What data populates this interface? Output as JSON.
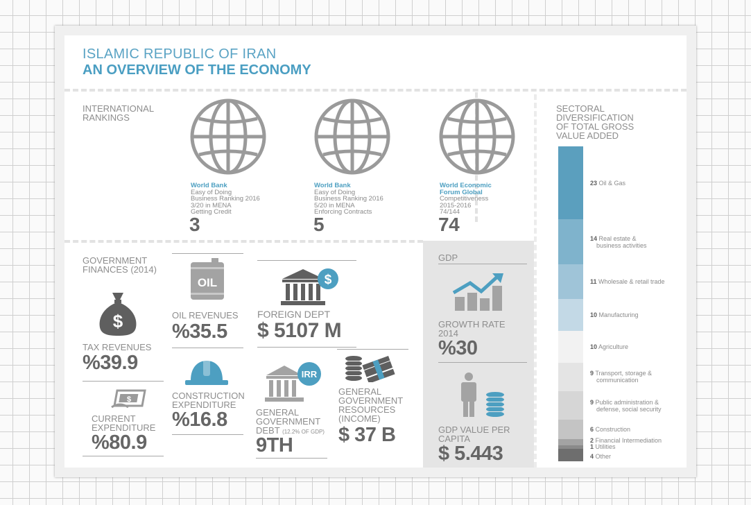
{
  "header": {
    "title_line1": "ISLAMIC REPUBLIC OF IRAN",
    "title_line2": "AN OVERVIEW OF THE ECONOMY"
  },
  "rankings": {
    "heading_line1": "INTERNATIONAL",
    "heading_line2": "RANKINGS",
    "items": [
      {
        "source": "World Bank",
        "line1": "Easy of Doing",
        "line2": "Business Ranking 2016",
        "line3": "3/20 in MENA",
        "line4": "Getting Credit",
        "value": "3"
      },
      {
        "source": "World Bank",
        "line1": "Easy of Doing",
        "line2": "Business Ranking 2016",
        "line3": "5/20 in MENA",
        "line4": "Enforcing Contracts",
        "value": "5"
      },
      {
        "source_line1": "World Economic",
        "source_line2": "Forum Global",
        "line1": "Competitiveness",
        "line2": "2015-2016",
        "line3": "74/144",
        "value": "74"
      }
    ]
  },
  "finances": {
    "heading_line1": "GOVERNMENT",
    "heading_line2": "FINANCES (2014)",
    "tax_revenues": {
      "label": "TAX REVENUES",
      "value": "%39.9",
      "icon": "money-bag-icon",
      "icon_symbol": "$"
    },
    "current_expenditure": {
      "label_line1": "CURRENT",
      "label_line2": "EXPENDITURE",
      "value": "%80.9",
      "icon": "cash-hand-icon",
      "icon_symbol": "$"
    },
    "oil_revenues": {
      "label": "OIL REVENUES",
      "value": "%35.5",
      "icon": "oil-barrel-icon",
      "icon_text": "OIL"
    },
    "construction_expenditure": {
      "label_line1": "CONSTRUCTION",
      "label_line2": "EXPENDITURE",
      "value": "%16.8",
      "icon": "hard-hat-icon"
    },
    "foreign_debt": {
      "label": "FOREIGN DEPT",
      "value": "$ 5107 M",
      "icon": "bank-dollar-icon",
      "icon_symbol": "$"
    },
    "government_debt": {
      "label_line1": "GENERAL",
      "label_line2": "GOVERNMENT",
      "label_line3": "DEBT",
      "label_note": "(12.2% OF GDP)",
      "value": "9TH",
      "icon": "bank-irr-icon",
      "icon_text": "IRR"
    },
    "government_resources": {
      "label_line1": "GENERAL",
      "label_line2": "GOVERNMENT",
      "label_line3": "RESOURCES",
      "label_line4": "(INCOME)",
      "value": "$ 37 B",
      "icon": "coins-cash-icon"
    }
  },
  "gdp": {
    "heading": "GDP",
    "growth": {
      "label_line1": "GROWTH RATE",
      "label_line2": "2014",
      "value": "%30",
      "icon": "growth-chart-icon"
    },
    "per_capita": {
      "label_line1": "GDP VALUE PER",
      "label_line2": "CAPITA",
      "value": "$ 5.443",
      "icon": "person-coins-icon"
    }
  },
  "sectoral": {
    "heading_line1": "SECTORAL",
    "heading_line2": "DIVERSIFICATION",
    "heading_line3": "OF TOTAL GROSS",
    "heading_line4": "VALUE ADDED",
    "sectors": [
      {
        "value": "23",
        "name": "Oil & Gas",
        "name2": "",
        "color": "#5b9fbe"
      },
      {
        "value": "14",
        "name": "Real estate &",
        "name2": "business activities",
        "color": "#7fb3cc"
      },
      {
        "value": "11",
        "name": "Wholesale & retail trade",
        "name2": "",
        "color": "#9fc4d8"
      },
      {
        "value": "10",
        "name": "Manufacturing",
        "name2": "",
        "color": "#c3d9e6"
      },
      {
        "value": "10",
        "name": "Agriculture",
        "name2": "",
        "color": "#f2f2f2"
      },
      {
        "value": "9",
        "name": "Transport, storage &",
        "name2": "communication",
        "color": "#e4e4e4"
      },
      {
        "value": "9",
        "name": "Public administration &",
        "name2": "defense, social security",
        "color": "#d6d6d6"
      },
      {
        "value": "6",
        "name": "Construction",
        "name2": "",
        "color": "#c4c4c4"
      },
      {
        "value": "2",
        "name": "Financial Intermediation",
        "name2": "",
        "color": "#a3a3a3"
      },
      {
        "value": "1",
        "name": "Utilities",
        "name2": "",
        "color": "#8a8a8a"
      },
      {
        "value": "4",
        "name": "Other",
        "name2": "",
        "color": "#6e6e6e"
      }
    ]
  }
}
